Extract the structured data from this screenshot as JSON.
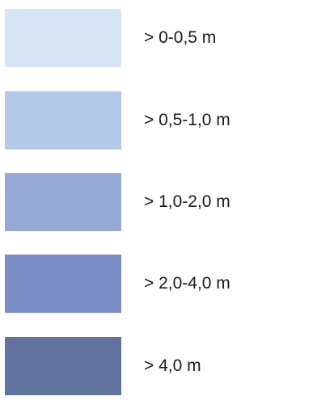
{
  "legend": {
    "items": [
      {
        "label": "> 0-0,5 m",
        "color": "#d6e4f4"
      },
      {
        "label": "> 0,5-1,0 m",
        "color": "#b4c8e7"
      },
      {
        "label": "> 1,0-2,0 m",
        "color": "#97aad6"
      },
      {
        "label": "> 2,0-4,0 m",
        "color": "#7c8cc6"
      },
      {
        "label": "> 4,0 m",
        "color": "#63739f"
      }
    ]
  }
}
